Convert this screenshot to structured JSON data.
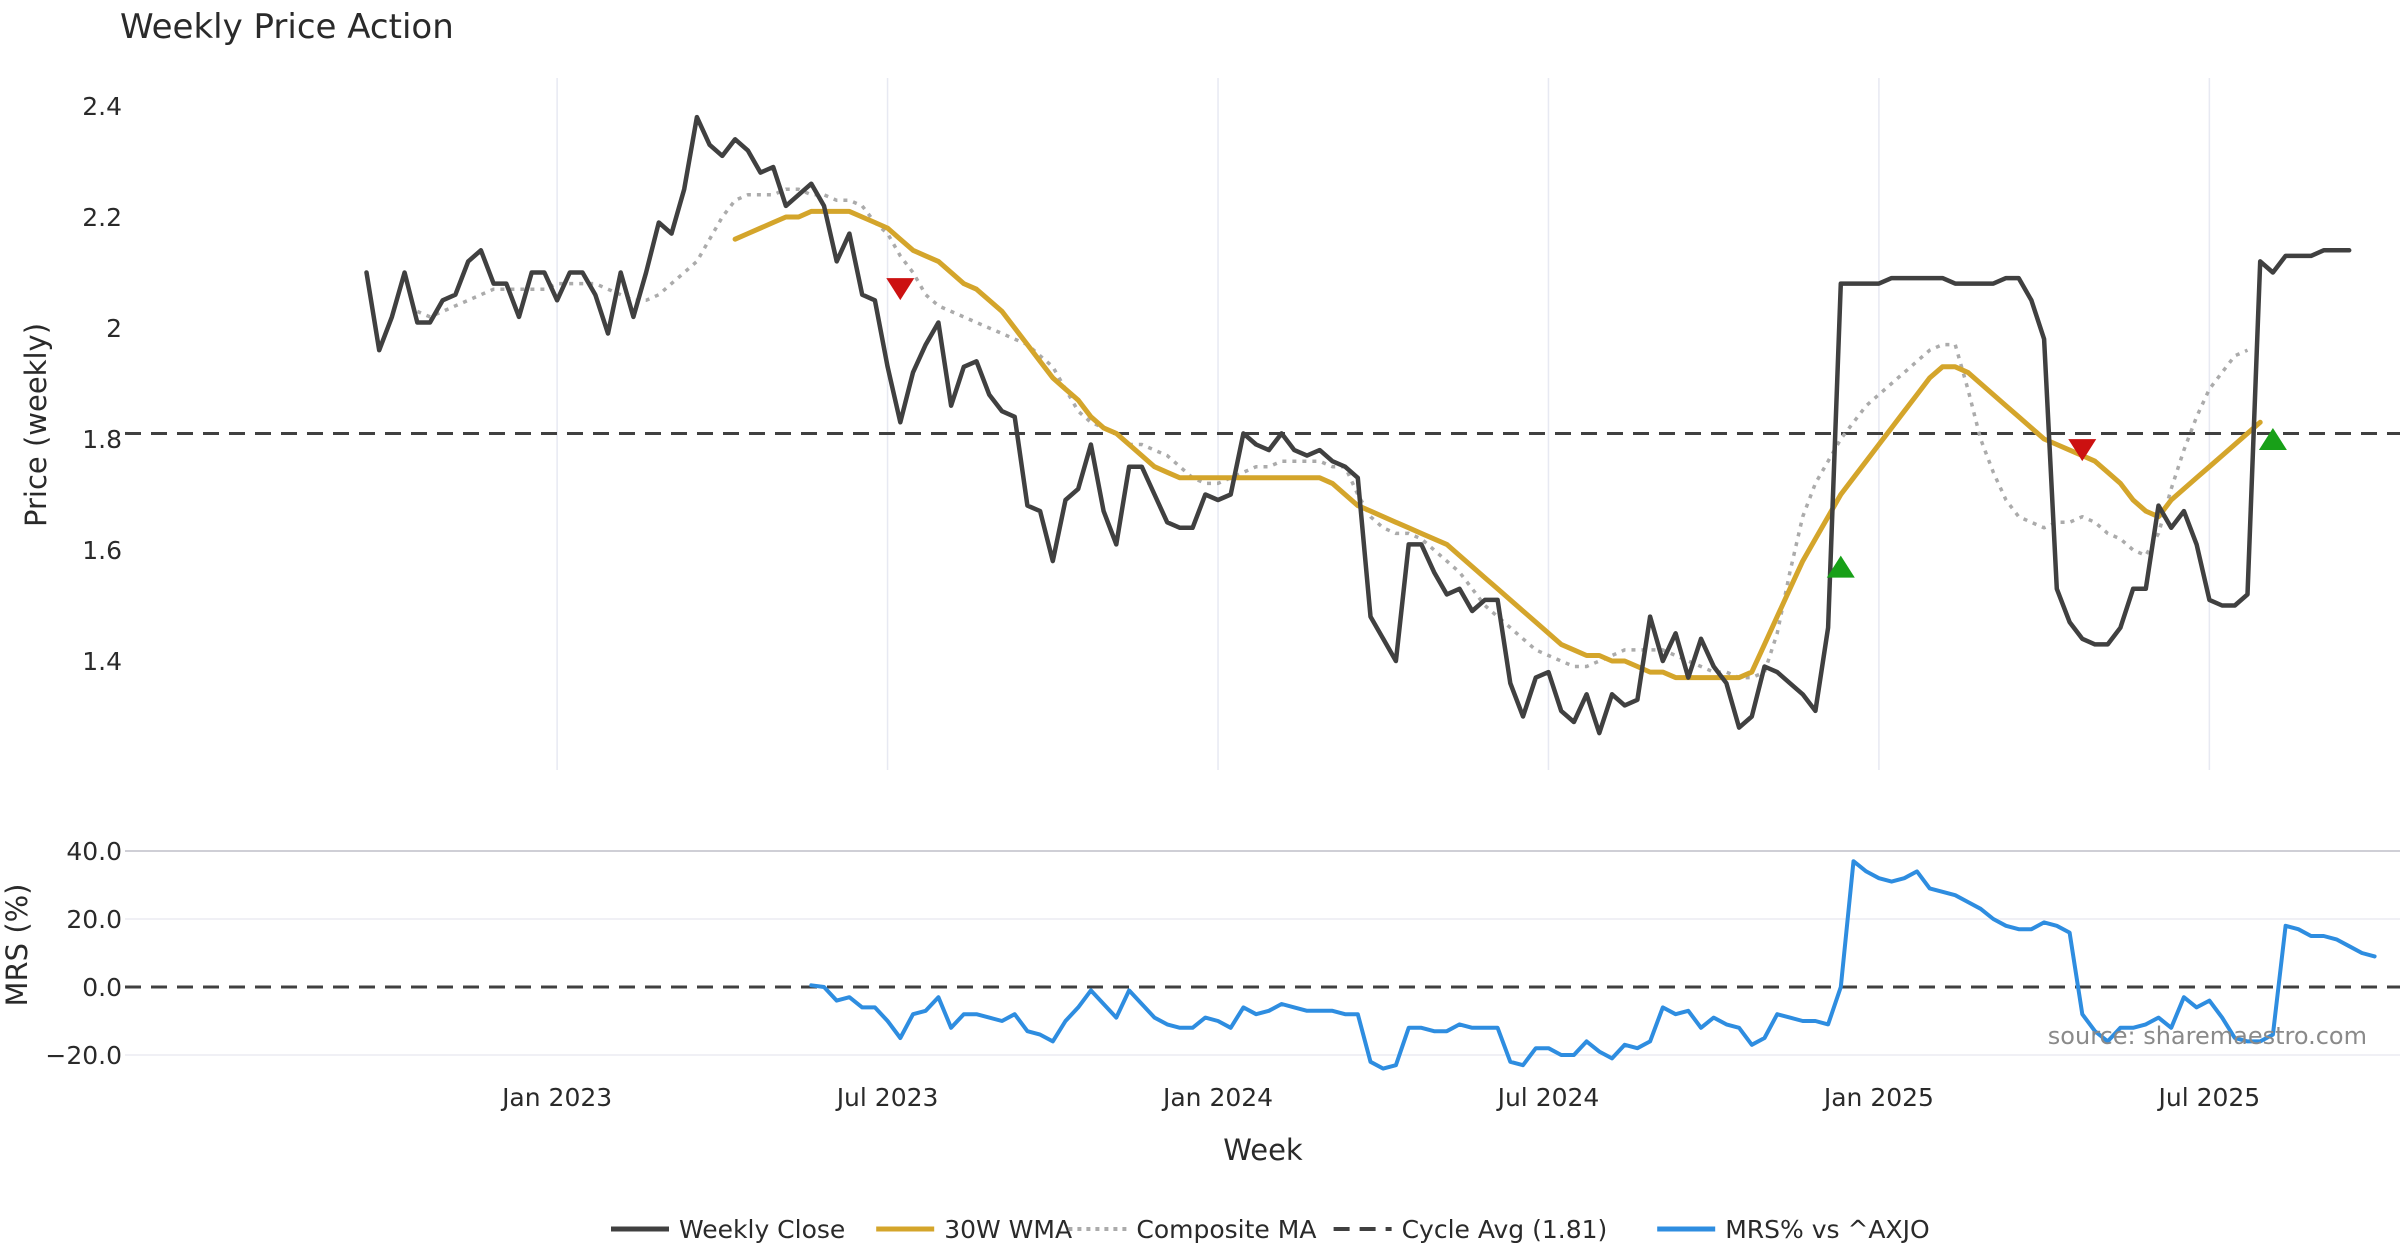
{
  "chart_data": {
    "type": "line",
    "title": "Weekly Price Action",
    "source_note": "source: sharemaestro.com",
    "x_label": "Week",
    "x_tick_labels": [
      "Jan 2023",
      "Jul 2023",
      "Jan 2024",
      "Jul 2024",
      "Jan 2025",
      "Jul 2025"
    ],
    "x_tick_positions_week": [
      15,
      41,
      67,
      93,
      119,
      145
    ],
    "x_range_week": [
      -19,
      160
    ],
    "price_panel": {
      "y_label": "Price (weekly)",
      "y_ticks": [
        1.4,
        1.6,
        1.8,
        2.0,
        2.2,
        2.4
      ],
      "y_tick_labels": [
        "1.4",
        "1.6",
        "1.8",
        "2",
        "2.2",
        "2.4"
      ],
      "ylim": [
        1.2,
        2.45
      ],
      "cycle_avg": 1.81,
      "series": [
        {
          "name": "Weekly Close",
          "color": "#404040",
          "style": "solid",
          "start_week": 0,
          "values": [
            2.1,
            1.96,
            2.02,
            2.1,
            2.01,
            2.01,
            2.05,
            2.06,
            2.12,
            2.14,
            2.08,
            2.08,
            2.02,
            2.1,
            2.1,
            2.05,
            2.1,
            2.1,
            2.06,
            1.99,
            2.1,
            2.02,
            2.1,
            2.19,
            2.17,
            2.25,
            2.38,
            2.33,
            2.31,
            2.34,
            2.32,
            2.28,
            2.29,
            2.22,
            2.24,
            2.26,
            2.22,
            2.12,
            2.17,
            2.06,
            2.05,
            1.93,
            1.83,
            1.92,
            1.97,
            2.01,
            1.86,
            1.93,
            1.94,
            1.88,
            1.85,
            1.84,
            1.68,
            1.67,
            1.58,
            1.69,
            1.71,
            1.79,
            1.67,
            1.61,
            1.75,
            1.75,
            1.7,
            1.65,
            1.64,
            1.64,
            1.7,
            1.69,
            1.7,
            1.81,
            1.79,
            1.78,
            1.81,
            1.78,
            1.77,
            1.78,
            1.76,
            1.75,
            1.73,
            1.48,
            1.44,
            1.4,
            1.61,
            1.61,
            1.56,
            1.52,
            1.53,
            1.49,
            1.51,
            1.51,
            1.36,
            1.3,
            1.37,
            1.38,
            1.31,
            1.29,
            1.34,
            1.27,
            1.34,
            1.32,
            1.33,
            1.48,
            1.4,
            1.45,
            1.37,
            1.44,
            1.39,
            1.36,
            1.28,
            1.3,
            1.39,
            1.38,
            1.36,
            1.34,
            1.31,
            1.46,
            2.08,
            2.08,
            2.08,
            2.08,
            2.09,
            2.09,
            2.09,
            2.09,
            2.09,
            2.08,
            2.08,
            2.08,
            2.08,
            2.09,
            2.09,
            2.05,
            1.98,
            1.53,
            1.47,
            1.44,
            1.43,
            1.43,
            1.46,
            1.53,
            1.53,
            1.68,
            1.64,
            1.67,
            1.61,
            1.51,
            1.5,
            1.5,
            1.52,
            2.12,
            2.1,
            2.13,
            2.13,
            2.13,
            2.14,
            2.14,
            2.14
          ]
        },
        {
          "name": "30W WMA",
          "color": "#d4a52b",
          "style": "solid",
          "start_week": 29,
          "values": [
            2.16,
            2.17,
            2.18,
            2.19,
            2.2,
            2.2,
            2.21,
            2.21,
            2.21,
            2.21,
            2.2,
            2.19,
            2.18,
            2.16,
            2.14,
            2.13,
            2.12,
            2.1,
            2.08,
            2.07,
            2.05,
            2.03,
            2.0,
            1.97,
            1.94,
            1.91,
            1.89,
            1.87,
            1.84,
            1.82,
            1.81,
            1.79,
            1.77,
            1.75,
            1.74,
            1.73,
            1.73,
            1.73,
            1.73,
            1.73,
            1.73,
            1.73,
            1.73,
            1.73,
            1.73,
            1.73,
            1.73,
            1.72,
            1.7,
            1.68,
            1.67,
            1.66,
            1.65,
            1.64,
            1.63,
            1.62,
            1.61,
            1.59,
            1.57,
            1.55,
            1.53,
            1.51,
            1.49,
            1.47,
            1.45,
            1.43,
            1.42,
            1.41,
            1.41,
            1.4,
            1.4,
            1.39,
            1.38,
            1.38,
            1.37,
            1.37,
            1.37,
            1.37,
            1.37,
            1.37,
            1.38,
            1.43,
            1.48,
            1.53,
            1.58,
            1.62,
            1.66,
            1.7,
            1.73,
            1.76,
            1.79,
            1.82,
            1.85,
            1.88,
            1.91,
            1.93,
            1.93,
            1.92,
            1.9,
            1.88,
            1.86,
            1.84,
            1.82,
            1.8,
            1.79,
            1.78,
            1.77,
            1.76,
            1.74,
            1.72,
            1.69,
            1.67,
            1.66,
            1.69,
            1.71,
            1.73,
            1.75,
            1.77,
            1.79,
            1.81,
            1.83
          ]
        },
        {
          "name": "Composite MA",
          "color": "#ababab",
          "style": "dotted",
          "start_week": 4,
          "values": [
            2.03,
            2.02,
            2.03,
            2.04,
            2.05,
            2.06,
            2.07,
            2.07,
            2.07,
            2.07,
            2.07,
            2.08,
            2.08,
            2.08,
            2.08,
            2.07,
            2.06,
            2.05,
            2.05,
            2.06,
            2.08,
            2.1,
            2.12,
            2.16,
            2.2,
            2.23,
            2.24,
            2.24,
            2.24,
            2.25,
            2.25,
            2.24,
            2.24,
            2.23,
            2.23,
            2.22,
            2.19,
            2.17,
            2.13,
            2.1,
            2.06,
            2.04,
            2.03,
            2.02,
            2.01,
            2.0,
            1.99,
            1.98,
            1.97,
            1.95,
            1.93,
            1.89,
            1.85,
            1.83,
            1.82,
            1.81,
            1.79,
            1.79,
            1.78,
            1.77,
            1.75,
            1.73,
            1.72,
            1.72,
            1.73,
            1.74,
            1.75,
            1.75,
            1.76,
            1.76,
            1.76,
            1.76,
            1.75,
            1.75,
            1.7,
            1.66,
            1.64,
            1.63,
            1.63,
            1.62,
            1.6,
            1.58,
            1.56,
            1.53,
            1.5,
            1.48,
            1.46,
            1.44,
            1.42,
            1.41,
            1.4,
            1.39,
            1.39,
            1.4,
            1.41,
            1.42,
            1.42,
            1.42,
            1.42,
            1.41,
            1.4,
            1.39,
            1.38,
            1.38,
            1.37,
            1.37,
            1.38,
            1.45,
            1.56,
            1.66,
            1.72,
            1.76,
            1.8,
            1.83,
            1.86,
            1.88,
            1.9,
            1.92,
            1.94,
            1.96,
            1.97,
            1.97,
            1.89,
            1.8,
            1.74,
            1.69,
            1.66,
            1.65,
            1.64,
            1.65,
            1.65,
            1.66,
            1.65,
            1.63,
            1.62,
            1.6,
            1.59,
            1.63,
            1.71,
            1.78,
            1.84,
            1.89,
            1.92,
            1.95,
            1.96
          ]
        }
      ],
      "signals": [
        {
          "type": "sell",
          "week": 42,
          "value": 2.07,
          "color": "#cc1111"
        },
        {
          "type": "buy",
          "week": 116,
          "value": 1.57,
          "color": "#18a018"
        },
        {
          "type": "sell",
          "week": 135,
          "value": 1.78,
          "color": "#cc1111"
        },
        {
          "type": "buy",
          "week": 150,
          "value": 1.8,
          "color": "#18a018"
        }
      ]
    },
    "mrs_panel": {
      "y_label": "MRS (%)",
      "y_ticks": [
        -20,
        0,
        20,
        40
      ],
      "y_tick_labels": [
        "−20.0",
        "0.0",
        "20.0",
        "40.0"
      ],
      "ylim": [
        -25,
        40
      ],
      "zero_line": 0,
      "series": [
        {
          "name": "MRS% vs ^AXJO",
          "color": "#2e8de0",
          "style": "solid",
          "start_week": 35,
          "values": [
            0.5,
            0,
            -4,
            -3,
            -6,
            -6,
            -10,
            -15,
            -8,
            -7,
            -3,
            -12,
            -8,
            -8,
            -9,
            -10,
            -8,
            -13,
            -14,
            -16,
            -10,
            -6,
            -1,
            -5,
            -9,
            -1,
            -5,
            -9,
            -11,
            -12,
            -12,
            -9,
            -10,
            -12,
            -6,
            -8,
            -7,
            -5,
            -6,
            -7,
            -7,
            -7,
            -8,
            -8,
            -22,
            -24,
            -23,
            -12,
            -12,
            -13,
            -13,
            -11,
            -12,
            -12,
            -12,
            -22,
            -23,
            -18,
            -18,
            -20,
            -20,
            -16,
            -19,
            -21,
            -17,
            -18,
            -16,
            -6,
            -8,
            -7,
            -12,
            -9,
            -11,
            -12,
            -17,
            -15,
            -8,
            -9,
            -10,
            -10,
            -11,
            0,
            37,
            34,
            32,
            31,
            32,
            34,
            29,
            28,
            27,
            25,
            23,
            20,
            18,
            17,
            17,
            19,
            18,
            16,
            -8,
            -13,
            -16,
            -12,
            -12,
            -11,
            -9,
            -12,
            -3,
            -6,
            -4,
            -9,
            -15,
            -16,
            -16,
            -14,
            18,
            17,
            15,
            15,
            14,
            12,
            10,
            9
          ]
        }
      ]
    },
    "legend": [
      {
        "label": "Weekly Close",
        "color": "#404040",
        "style": "solid"
      },
      {
        "label": "30W WMA",
        "color": "#d4a52b",
        "style": "solid"
      },
      {
        "label": "Composite MA",
        "color": "#ababab",
        "style": "dotted"
      },
      {
        "label": "Cycle Avg (1.81)",
        "color": "#404040",
        "style": "dashed"
      },
      {
        "label": "MRS% vs ^AXJO",
        "color": "#2e8de0",
        "style": "solid"
      }
    ]
  }
}
